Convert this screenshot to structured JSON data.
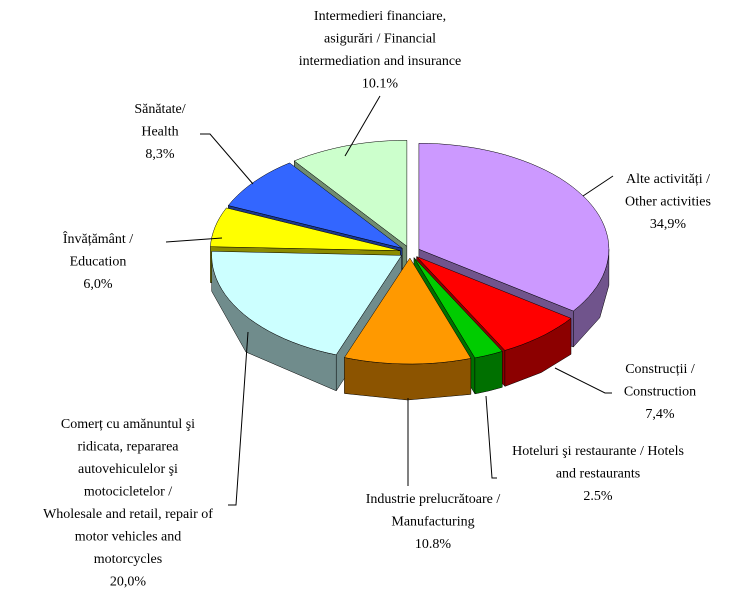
{
  "chart_data": {
    "type": "pie",
    "categories": [
      [
        "Alte activități /",
        "Other activities"
      ],
      [
        "Construcții /",
        "Construction"
      ],
      [
        "Hoteluri şi restaurante / Hotels",
        "and restaurants"
      ],
      [
        "Industrie prelucrătoare /",
        "Manufacturing"
      ],
      [
        "Comerț cu amănuntul şi",
        "ridicata, repararea",
        "autovehiculelor şi",
        "motocicletelor /",
        "Wholesale and retail, repair of",
        "motor vehicles and",
        "motorcycles"
      ],
      [
        "Învățământ /",
        "Education"
      ],
      [
        "Sănătate/",
        "Health"
      ],
      [
        "Intermedieri financiare,",
        "asigurări / Financial",
        "intermediation and insurance"
      ]
    ],
    "values": [
      34.9,
      7.4,
      2.5,
      10.8,
      20.0,
      6.0,
      8.3,
      10.1
    ],
    "value_labels": [
      "34,9%",
      "7,4%",
      "2.5%",
      "10.8%",
      "20,0%",
      "6,0%",
      "8,3%",
      "10.1%"
    ],
    "colors": [
      "#cc99ff",
      "#ff0000",
      "#00cc00",
      "#ff9900",
      "#ccffff",
      "#ffff00",
      "#3366ff",
      "#ccffcc"
    ]
  }
}
